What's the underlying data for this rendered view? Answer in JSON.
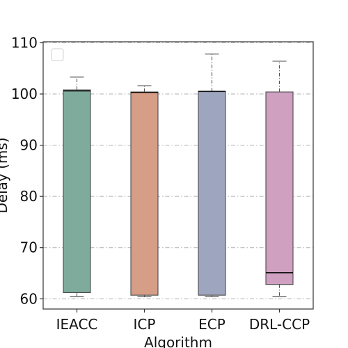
{
  "chart_data": {
    "type": "box",
    "xlabel": "Algorithm",
    "ylabel": "Delay (ms)",
    "ylim": [
      58,
      110.2
    ],
    "yticks": [
      60,
      70,
      80,
      90,
      100,
      110
    ],
    "grid": "horizontal, dash-dot",
    "legend": "top-left, empty",
    "categories": [
      "IEACC",
      "ICP",
      "ECP",
      "DRL-CCP"
    ],
    "boxes": [
      {
        "name": "IEACC",
        "whisker_low": 60.4,
        "q1": 61.2,
        "median": 100.6,
        "q3": 100.8,
        "whisker_high": 103.3,
        "color": "#7eab9c"
      },
      {
        "name": "ICP",
        "whisker_low": 60.4,
        "q1": 60.7,
        "median": 100.3,
        "q3": 100.4,
        "whisker_high": 101.6,
        "color": "#d69e86"
      },
      {
        "name": "ECP",
        "whisker_low": 60.4,
        "q1": 60.7,
        "median": 100.5,
        "q3": 100.5,
        "whisker_high": 107.8,
        "color": "#9ea5be"
      },
      {
        "name": "DRL-CCP",
        "whisker_low": 60.4,
        "q1": 62.8,
        "median": 65.1,
        "q3": 100.4,
        "whisker_high": 106.4,
        "color": "#cfa0c0"
      }
    ]
  }
}
